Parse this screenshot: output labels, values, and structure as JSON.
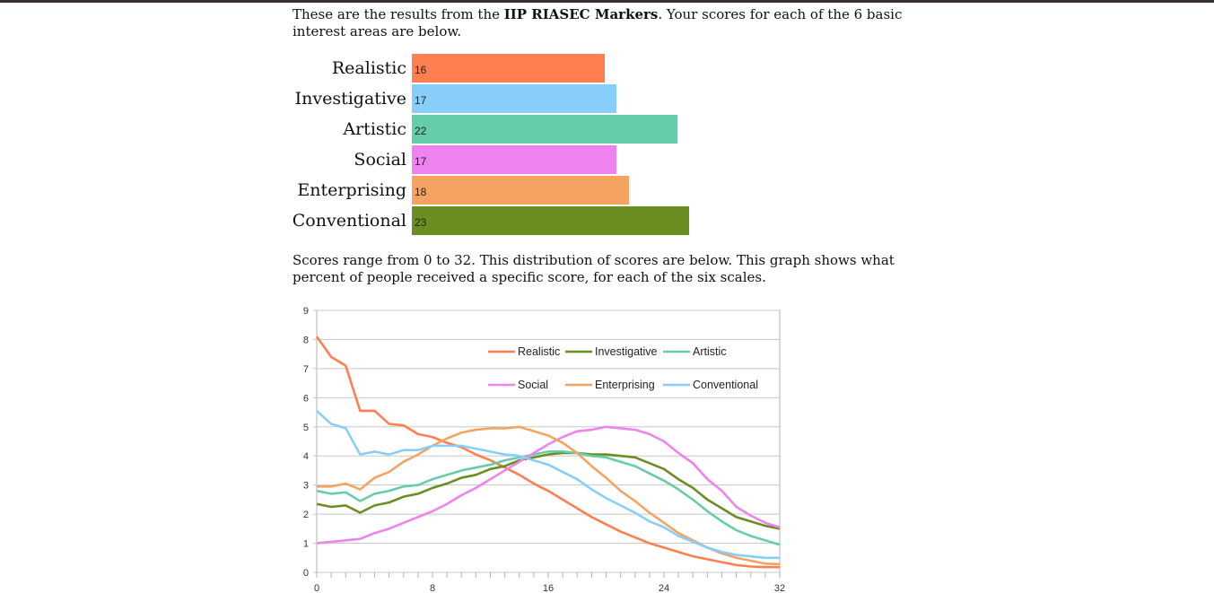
{
  "intro": {
    "prefix": "These are the results from the ",
    "test_name": "IIP RIASEC Markers",
    "suffix": ". Your scores for each of the 6 basic interest areas are below."
  },
  "scores": [
    {
      "label": "Realistic",
      "value": 16,
      "color": "#ff7f50"
    },
    {
      "label": "Investigative",
      "value": 17,
      "color": "#87cefa"
    },
    {
      "label": "Artistic",
      "value": 22,
      "color": "#66cdaa"
    },
    {
      "label": "Social",
      "value": 17,
      "color": "#ee82ee"
    },
    {
      "label": "Enterprising",
      "value": 18,
      "color": "#f4a460"
    },
    {
      "label": "Conventional",
      "value": 23,
      "color": "#6b8e23"
    }
  ],
  "distribution_text": "Scores range from 0 to 32. This distribution of scores are below. This graph shows what percent of people received a specific score, for each of the six scales.",
  "chart_data": [
    {
      "type": "bar",
      "categories": [
        "Realistic",
        "Investigative",
        "Artistic",
        "Social",
        "Enterprising",
        "Conventional"
      ],
      "values": [
        16,
        17,
        22,
        17,
        18,
        23
      ],
      "xlim": [
        0,
        32
      ]
    },
    {
      "type": "line",
      "xlim": [
        0,
        32
      ],
      "ylim": [
        0,
        9
      ],
      "x_ticks": [
        0,
        8,
        16,
        24,
        32
      ],
      "y_ticks": [
        0,
        1,
        2,
        3,
        4,
        5,
        6,
        7,
        8,
        9
      ],
      "grid": true,
      "legend_position": "top-right",
      "x": [
        0,
        1,
        2,
        3,
        4,
        5,
        6,
        7,
        8,
        9,
        10,
        11,
        12,
        13,
        14,
        15,
        16,
        17,
        18,
        19,
        20,
        21,
        22,
        23,
        24,
        25,
        26,
        27,
        28,
        29,
        30,
        31,
        32
      ],
      "series": [
        {
          "name": "Realistic",
          "color": "#ff7f50",
          "values": [
            8.1,
            7.4,
            7.1,
            5.55,
            5.55,
            5.1,
            5.05,
            4.75,
            4.65,
            4.45,
            4.3,
            4.05,
            3.85,
            3.6,
            3.35,
            3.05,
            2.8,
            2.5,
            2.2,
            1.9,
            1.65,
            1.4,
            1.2,
            1.0,
            0.85,
            0.7,
            0.55,
            0.45,
            0.35,
            0.25,
            0.2,
            0.18,
            0.18
          ]
        },
        {
          "name": "Investigative",
          "color": "#6b8e23",
          "values": [
            2.35,
            2.25,
            2.3,
            2.05,
            2.3,
            2.4,
            2.6,
            2.7,
            2.9,
            3.05,
            3.25,
            3.35,
            3.55,
            3.65,
            3.85,
            3.95,
            4.05,
            4.1,
            4.1,
            4.05,
            4.05,
            4.0,
            3.95,
            3.75,
            3.55,
            3.2,
            2.9,
            2.5,
            2.2,
            1.9,
            1.75,
            1.6,
            1.5
          ]
        },
        {
          "name": "Artistic",
          "color": "#66cdaa",
          "values": [
            2.8,
            2.7,
            2.75,
            2.45,
            2.7,
            2.8,
            2.95,
            3.0,
            3.2,
            3.35,
            3.5,
            3.6,
            3.7,
            3.85,
            3.95,
            4.05,
            4.15,
            4.15,
            4.1,
            4.0,
            3.95,
            3.8,
            3.65,
            3.4,
            3.15,
            2.85,
            2.5,
            2.1,
            1.75,
            1.45,
            1.25,
            1.1,
            0.95
          ]
        },
        {
          "name": "Social",
          "color": "#ee82ee",
          "values": [
            1.0,
            1.05,
            1.1,
            1.15,
            1.35,
            1.5,
            1.7,
            1.9,
            2.1,
            2.35,
            2.65,
            2.9,
            3.2,
            3.5,
            3.8,
            4.1,
            4.4,
            4.65,
            4.85,
            4.9,
            5.0,
            4.95,
            4.9,
            4.75,
            4.5,
            4.1,
            3.75,
            3.2,
            2.8,
            2.25,
            1.95,
            1.7,
            1.55
          ]
        },
        {
          "name": "Enterprising",
          "color": "#f4a460",
          "values": [
            2.95,
            2.95,
            3.05,
            2.85,
            3.25,
            3.45,
            3.8,
            4.05,
            4.35,
            4.6,
            4.8,
            4.9,
            4.95,
            4.95,
            5.0,
            4.85,
            4.7,
            4.45,
            4.1,
            3.65,
            3.25,
            2.8,
            2.45,
            2.05,
            1.7,
            1.35,
            1.1,
            0.85,
            0.65,
            0.5,
            0.4,
            0.3,
            0.28
          ]
        },
        {
          "name": "Conventional",
          "color": "#87cefa",
          "values": [
            5.55,
            5.1,
            4.95,
            4.05,
            4.15,
            4.05,
            4.2,
            4.2,
            4.35,
            4.35,
            4.35,
            4.25,
            4.15,
            4.05,
            4.0,
            3.85,
            3.7,
            3.45,
            3.2,
            2.85,
            2.55,
            2.3,
            2.05,
            1.75,
            1.55,
            1.25,
            1.05,
            0.85,
            0.7,
            0.6,
            0.55,
            0.5,
            0.5
          ]
        }
      ]
    }
  ]
}
